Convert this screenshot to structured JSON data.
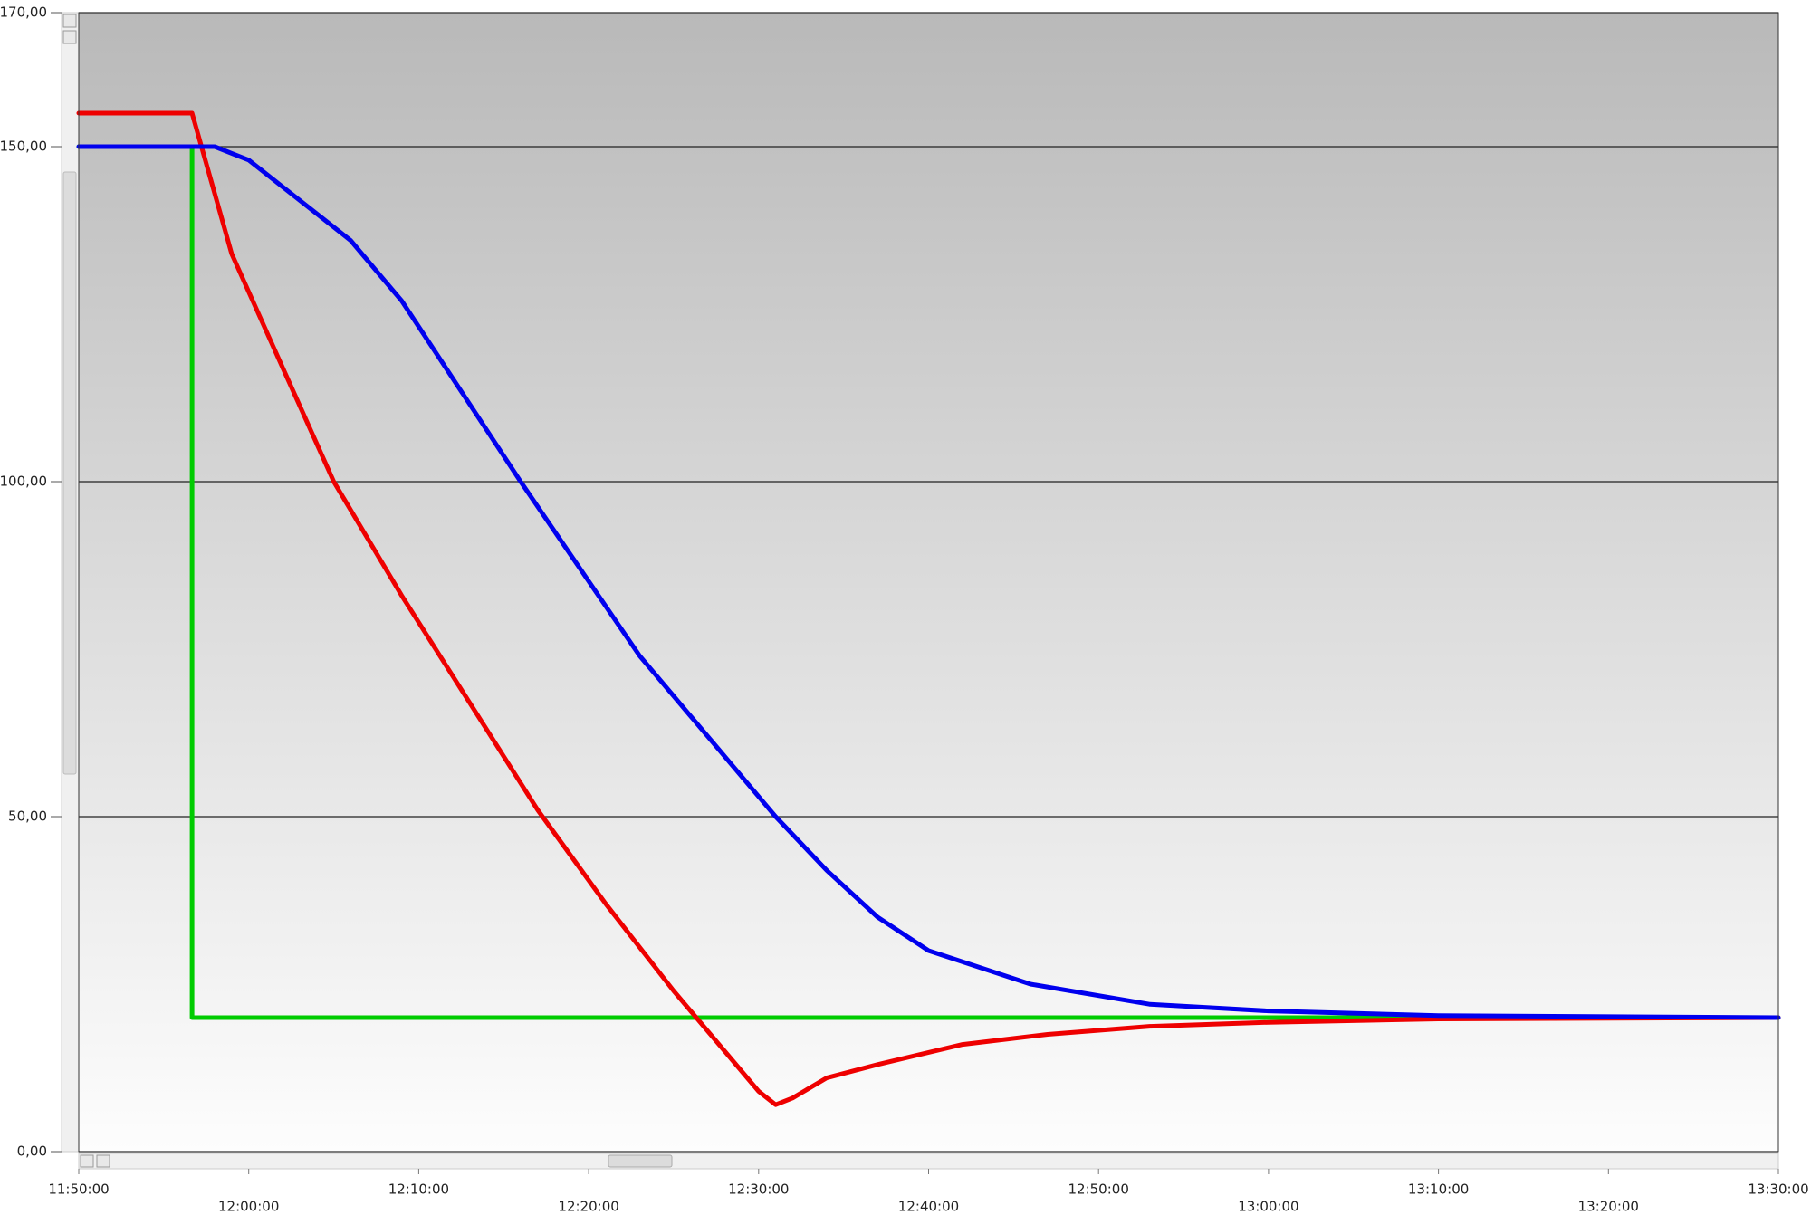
{
  "chart_data": {
    "type": "line",
    "xlim": [
      "11:50:00",
      "13:30:00"
    ],
    "xticks": [
      "11:50:00",
      "12:00:00",
      "12:10:00",
      "12:20:00",
      "12:30:00",
      "12:40:00",
      "12:50:00",
      "13:00:00",
      "13:10:00",
      "13:20:00",
      "13:30:00"
    ],
    "ylim": [
      0,
      170
    ],
    "yticks": [
      {
        "value": 0,
        "label": "0,00"
      },
      {
        "value": 50,
        "label": "50,00"
      },
      {
        "value": 100,
        "label": "100,00"
      },
      {
        "value": 150,
        "label": "150,00"
      },
      {
        "value": 170,
        "label": "170,00"
      }
    ],
    "grid": true,
    "series": [
      {
        "color": "#00cc00",
        "x": [
          "11:50:00",
          "11:56:40",
          "11:56:40",
          "13:30:00"
        ],
        "values": [
          150,
          150,
          20,
          20
        ]
      },
      {
        "color": "#ee0000",
        "x": [
          "11:50:00",
          "11:54:00",
          "11:56:40",
          "11:59:00",
          "12:02:00",
          "12:05:00",
          "12:09:00",
          "12:13:00",
          "12:17:00",
          "12:21:00",
          "12:25:00",
          "12:28:00",
          "12:30:00",
          "12:31:00",
          "12:32:00",
          "12:34:00",
          "12:37:00",
          "12:42:00",
          "12:47:00",
          "12:53:00",
          "13:00:00",
          "13:10:00",
          "13:30:00"
        ],
        "values": [
          155,
          155,
          155,
          134,
          117,
          100,
          83,
          67,
          51,
          37,
          24,
          15,
          9,
          7,
          8,
          11,
          13,
          16,
          17.5,
          18.7,
          19.3,
          19.8,
          20
        ]
      },
      {
        "color": "#0000ee",
        "x": [
          "11:50:00",
          "11:58:00",
          "12:00:00",
          "12:02:00",
          "12:06:00",
          "12:09:00",
          "12:16:00",
          "12:23:00",
          "12:31:00",
          "12:34:00",
          "12:37:00",
          "12:40:00",
          "12:46:00",
          "12:53:00",
          "13:00:00",
          "13:10:00",
          "13:30:00"
        ],
        "values": [
          150,
          150,
          148,
          144,
          136,
          127,
          100,
          74,
          50,
          42,
          35,
          30,
          25,
          22,
          21,
          20.3,
          20
        ]
      }
    ]
  }
}
